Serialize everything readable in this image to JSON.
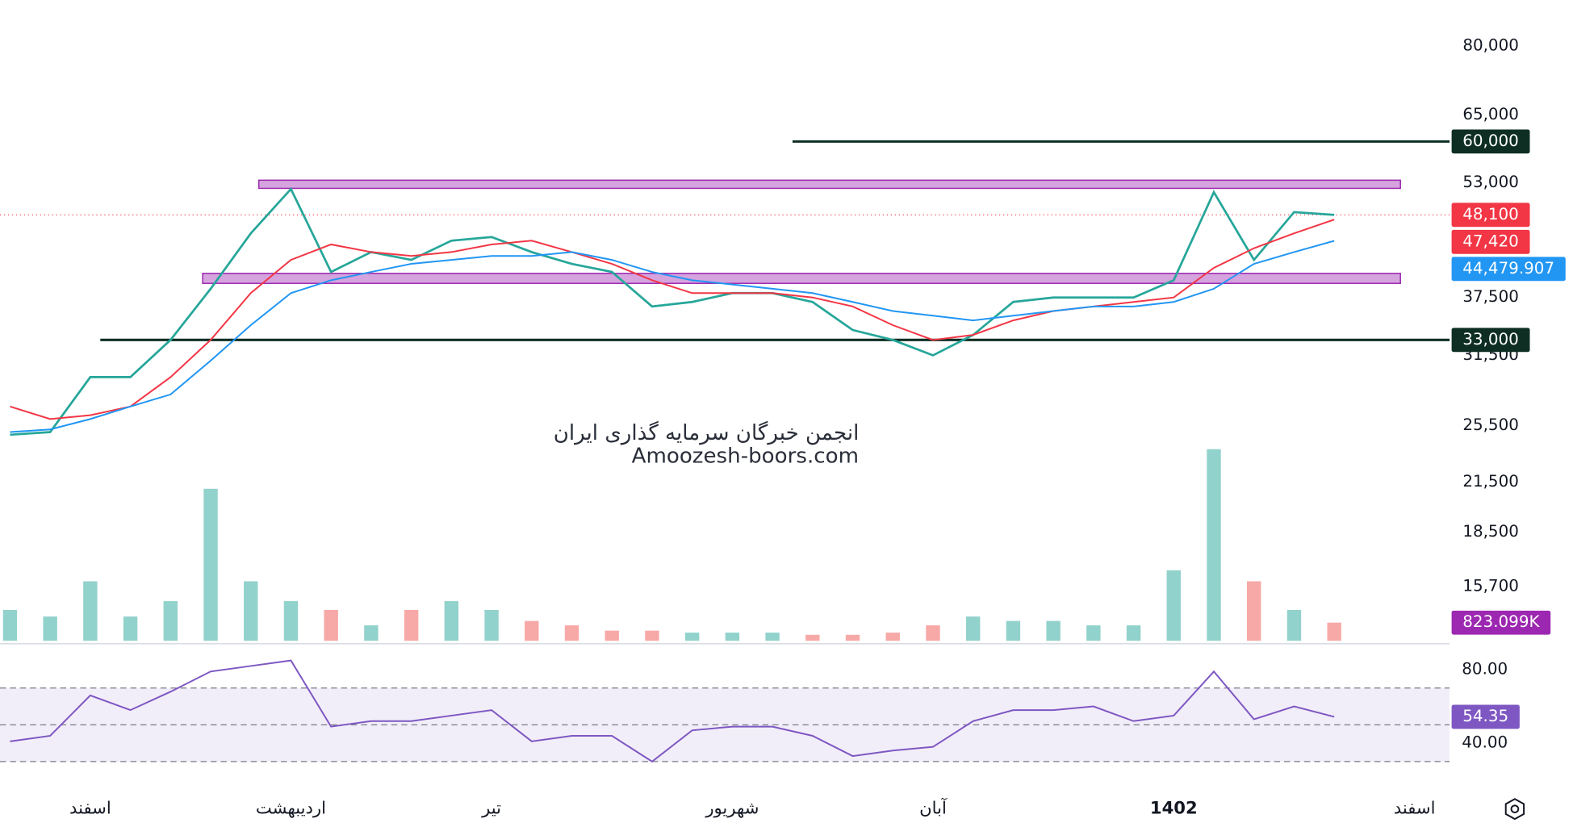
{
  "chart_data": {
    "type": "line",
    "scale": "log",
    "categories": [
      null,
      null,
      "اسفند",
      null,
      null,
      null,
      null,
      "اردیبهشت",
      null,
      null,
      null,
      null,
      "تیر",
      null,
      null,
      null,
      null,
      null,
      "شهریور",
      null,
      null,
      null,
      null,
      "آبان",
      null,
      null,
      null,
      null,
      null,
      "1402",
      null,
      null,
      null,
      null,
      null,
      "اسفند"
    ],
    "ylim": [
      13330,
      91900
    ],
    "yticks": [
      {
        "value": 80000,
        "label": "80,000"
      },
      {
        "value": 65000,
        "label": "65,000"
      },
      {
        "value": 53000,
        "label": "53,000"
      },
      {
        "value": 37500,
        "label": "37,500"
      },
      {
        "value": 31500,
        "label": "31,500"
      },
      {
        "value": 25500,
        "label": "25,500"
      },
      {
        "value": 21500,
        "label": "21,500"
      },
      {
        "value": 18500,
        "label": "18,500"
      },
      {
        "value": 15700,
        "label": "15,700"
      }
    ],
    "series": [
      {
        "color": "#26a69a",
        "label_color": "#f23645",
        "values": [
          24800,
          25000,
          29500,
          29500,
          33000,
          38500,
          45500,
          52000,
          40500,
          43000,
          42000,
          44500,
          45000,
          43000,
          41500,
          40500,
          36500,
          37000,
          38000,
          38000,
          37000,
          34000,
          33000,
          31500,
          33500,
          37000,
          37500,
          37500,
          37500,
          39500,
          51500,
          42000,
          48500,
          48100,
          null,
          null
        ],
        "value_labels": [
          null,
          null,
          null,
          null,
          null,
          null,
          null,
          null,
          null,
          null,
          null,
          null,
          null,
          null,
          null,
          null,
          null,
          null,
          null,
          null,
          null,
          null,
          null,
          null,
          null,
          null,
          null,
          null,
          null,
          null,
          null,
          null,
          null,
          "48,100",
          null,
          null
        ]
      },
      {
        "color": "#f23645",
        "label_color": "#f23645",
        "values": [
          27000,
          26000,
          26300,
          27000,
          29500,
          33000,
          38000,
          42000,
          44000,
          43000,
          42500,
          43000,
          44000,
          44500,
          43000,
          41500,
          39500,
          38000,
          38000,
          38000,
          37500,
          36500,
          34500,
          33000,
          33500,
          35000,
          36000,
          36500,
          37000,
          37500,
          41000,
          43500,
          45500,
          47420,
          null,
          null
        ],
        "value_labels": [
          null,
          null,
          null,
          null,
          null,
          null,
          null,
          null,
          null,
          null,
          null,
          null,
          null,
          null,
          null,
          null,
          null,
          null,
          null,
          null,
          null,
          null,
          null,
          null,
          null,
          null,
          null,
          null,
          null,
          null,
          null,
          null,
          null,
          "47,420",
          null,
          null
        ]
      },
      {
        "color": "#2196f3",
        "label_color": "#2196f3",
        "values": [
          25000,
          25200,
          26000,
          27000,
          28000,
          31000,
          34500,
          38000,
          39500,
          40500,
          41500,
          42000,
          42500,
          42500,
          43000,
          42000,
          40500,
          39500,
          39000,
          38500,
          38000,
          37000,
          36000,
          35500,
          35000,
          35500,
          36000,
          36500,
          36500,
          37000,
          38500,
          41500,
          43000,
          44479.907,
          null,
          null
        ],
        "value_labels": [
          null,
          null,
          null,
          null,
          null,
          null,
          null,
          null,
          null,
          null,
          null,
          null,
          null,
          null,
          null,
          null,
          null,
          null,
          null,
          null,
          null,
          null,
          null,
          null,
          null,
          null,
          null,
          null,
          null,
          null,
          null,
          null,
          null,
          "44,479.907",
          null,
          null
        ]
      }
    ],
    "levels": [
      {
        "value": 60000,
        "label": "60,000",
        "from": 19.5
      },
      {
        "value": 33000,
        "label": "33,000",
        "from": 2.25
      }
    ],
    "zones": [
      {
        "range": [
          52100,
          53400
        ],
        "x": [
          6.2,
          34.65
        ]
      },
      {
        "range": [
          39130,
          40330
        ],
        "x": [
          4.8,
          34.65
        ]
      }
    ],
    "watermark": [
      "انجمن خبرگان سرمایه گذاری ایران",
      "Amoozesh-boors.com"
    ],
    "volume": {
      "ylim": [
        0,
        10000000
      ],
      "up_color": "rgba(38,166,154,0.5)",
      "down_color": "rgba(239,83,80,0.5)",
      "label_color": "#9c27b0",
      "values": [
        1400000,
        1100000,
        2700000,
        1100000,
        1800000,
        6900000,
        2700000,
        1800000,
        1400000,
        700000,
        1400000,
        1800000,
        1400000,
        900000,
        700000,
        460000,
        460000,
        370000,
        370000,
        370000,
        270000,
        270000,
        370000,
        700000,
        1100000,
        900000,
        900000,
        700000,
        700000,
        3200000,
        8700000,
        2700000,
        1400000,
        823099,
        null,
        null
      ],
      "value_labels": [
        null,
        null,
        null,
        null,
        null,
        null,
        null,
        null,
        null,
        null,
        null,
        null,
        null,
        null,
        null,
        null,
        null,
        null,
        null,
        null,
        null,
        null,
        null,
        null,
        null,
        null,
        null,
        null,
        null,
        null,
        null,
        null,
        null,
        "823.099K",
        null,
        null
      ]
    },
    "rsi": {
      "color": "#7e57c2",
      "ylim": [
        14,
        93
      ],
      "yticks": [
        {
          "value": 80,
          "label": "80.00"
        },
        {
          "value": 40,
          "label": "40.00"
        }
      ],
      "bands": [
        30,
        50,
        70
      ],
      "values": [
        41,
        44,
        66,
        58,
        68,
        79,
        82,
        85,
        49,
        52,
        52,
        55,
        58,
        41,
        44,
        44,
        30,
        47,
        49,
        49,
        44,
        33,
        36,
        38,
        52,
        58,
        58,
        60,
        52,
        55,
        79,
        53,
        60,
        54.35,
        null,
        null
      ],
      "value_labels": [
        null,
        null,
        null,
        null,
        null,
        null,
        null,
        null,
        null,
        null,
        null,
        null,
        null,
        null,
        null,
        null,
        null,
        null,
        null,
        null,
        null,
        null,
        null,
        null,
        null,
        null,
        null,
        null,
        null,
        null,
        null,
        null,
        null,
        "54.35",
        null,
        null
      ]
    }
  }
}
